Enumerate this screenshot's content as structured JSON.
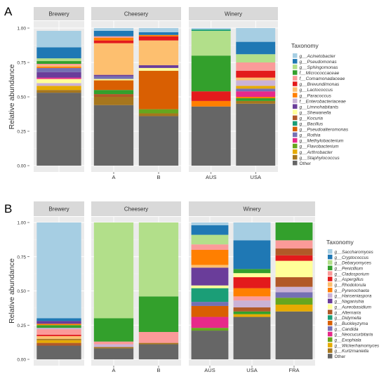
{
  "chart_data": [
    {
      "panel_label": "A",
      "type": "bar",
      "ylabel": "Relative abundance",
      "xlabel": "",
      "yticks": [
        "0.00",
        "0.25",
        "0.50",
        "0.75",
        "1.00"
      ],
      "ylim": [
        0,
        1
      ],
      "facets": [
        {
          "name": "Brewery",
          "bars": [
            ""
          ]
        },
        {
          "name": "Cheesery",
          "bars": [
            "A",
            "B"
          ]
        },
        {
          "name": "Winery",
          "bars": [
            "AUS",
            "USA"
          ]
        }
      ],
      "legend": {
        "title": "Taxonomy",
        "placement": "right",
        "entries": [
          {
            "label": "g__Acinetobacter",
            "color": "#a6cee3"
          },
          {
            "label": "g__Pseudomonas",
            "color": "#1f78b4"
          },
          {
            "label": "g__Sphingomonas",
            "color": "#b2df8a"
          },
          {
            "label": "f__Micrococcaceae",
            "color": "#33a02c"
          },
          {
            "label": "f__Comamonadaceae",
            "color": "#fb9a99"
          },
          {
            "label": "g__Brevundimonas",
            "color": "#e31a1c"
          },
          {
            "label": "g__Lactococcus",
            "color": "#fdbf6f"
          },
          {
            "label": "g__Paracoccus",
            "color": "#ff7f00"
          },
          {
            "label": "f__Enterobacteriaceae",
            "color": "#cab2d6"
          },
          {
            "label": "g__Limnohabitants",
            "color": "#6a3d9a"
          },
          {
            "label": "g__Shewanella",
            "color": "#ffff99"
          },
          {
            "label": "g__Kocuria",
            "color": "#b15928"
          },
          {
            "label": "g__Bacillus",
            "color": "#1b9e77"
          },
          {
            "label": "g__Pseudoalteromonas",
            "color": "#d95f02"
          },
          {
            "label": "g__Rothia",
            "color": "#7570b3"
          },
          {
            "label": "g__Methylobacterium",
            "color": "#e7298a"
          },
          {
            "label": "g__Flavobacterium",
            "color": "#66a61e"
          },
          {
            "label": "g__Arthrobacter",
            "color": "#e6ab02"
          },
          {
            "label": "g__Staphylococcus",
            "color": "#a6761d"
          },
          {
            "label": "Other",
            "color": "#666666"
          }
        ]
      },
      "series_values": [
        {
          "bar": "Brewery",
          "segments": [
            [
              "Other",
              0.53
            ],
            [
              "g__Staphylococcus",
              0.02
            ],
            [
              "g__Arthrobacter",
              0.03
            ],
            [
              "f__Enterobacteriaceae",
              0.02
            ],
            [
              "g__Shewanella",
              0.03
            ],
            [
              "g__Methylobacterium",
              0.01
            ],
            [
              "g__Limnohabitants",
              0.04
            ],
            [
              "g__Rothia",
              0.03
            ],
            [
              "g__Paracoccus",
              0.01
            ],
            [
              "g__Lactococcus",
              0.01
            ],
            [
              "f__Comamonadaceae",
              0.01
            ],
            [
              "f__Micrococcaceae",
              0.02
            ],
            [
              "g__Sphingomonas",
              0.02
            ],
            [
              "g__Pseudomonas",
              0.08
            ],
            [
              "g__Acinetobacter",
              0.12
            ]
          ]
        },
        {
          "bar": "A",
          "segments": [
            [
              "Other",
              0.44
            ],
            [
              "g__Staphylococcus",
              0.06
            ],
            [
              "g__Kocuria",
              0.02
            ],
            [
              "f__Micrococcaceae",
              0.03
            ],
            [
              "g__Pseudoalteromonas",
              0.07
            ],
            [
              "g__Shewanella",
              0.01
            ],
            [
              "g__Rothia",
              0.02
            ],
            [
              "g__Limnohabitants",
              0.01
            ],
            [
              "g__Lactococcus",
              0.23
            ],
            [
              "g__Brevundimonas",
              0.02
            ],
            [
              "g__Paracoccus",
              0.02
            ],
            [
              "f__Comamonadaceae",
              0.01
            ],
            [
              "g__Pseudomonas",
              0.04
            ],
            [
              "g__Acinetobacter",
              0.02
            ]
          ]
        },
        {
          "bar": "B",
          "segments": [
            [
              "Other",
              0.36
            ],
            [
              "g__Staphylococcus",
              0.02
            ],
            [
              "g__Flavobacterium",
              0.03
            ],
            [
              "g__Pseudoalteromonas",
              0.28
            ],
            [
              "g__Shewanella",
              0.02
            ],
            [
              "g__Limnohabitants",
              0.02
            ],
            [
              "g__Lactococcus",
              0.18
            ],
            [
              "g__Brevundimonas",
              0.03
            ],
            [
              "g__Paracoccus",
              0.01
            ],
            [
              "g__Pseudomonas",
              0.02
            ],
            [
              "g__Acinetobacter",
              0.03
            ]
          ]
        },
        {
          "bar": "AUS",
          "segments": [
            [
              "Other",
              0.43
            ],
            [
              "g__Paracoccus",
              0.04
            ],
            [
              "g__Brevundimonas",
              0.07
            ],
            [
              "f__Micrococcaceae",
              0.26
            ],
            [
              "g__Sphingomonas",
              0.18
            ],
            [
              "g__Bacillus",
              0.01
            ],
            [
              "g__Acinetobacter",
              0.01
            ]
          ]
        },
        {
          "bar": "USA",
          "segments": [
            [
              "Other",
              0.45
            ],
            [
              "g__Staphylococcus",
              0.02
            ],
            [
              "f__Micrococcaceae",
              0.02
            ],
            [
              "g__Paracoccus",
              0.01
            ],
            [
              "g__Methylobacterium",
              0.04
            ],
            [
              "g__Rothia",
              0.02
            ],
            [
              "g__Arthrobacter",
              0.02
            ],
            [
              "f__Enterobacteriaceae",
              0.04
            ],
            [
              "g__Lactococcus",
              0.02
            ],
            [
              "g__Brevundimonas",
              0.05
            ],
            [
              "f__Comamonadaceae",
              0.06
            ],
            [
              "g__Sphingomonas",
              0.06
            ],
            [
              "g__Pseudomonas",
              0.09
            ],
            [
              "g__Acinetobacter",
              0.1
            ]
          ]
        }
      ]
    },
    {
      "panel_label": "B",
      "type": "bar",
      "ylabel": "Relative abundance",
      "xlabel": "",
      "yticks": [
        "0.00",
        "0.25",
        "0.50",
        "0.75",
        "1.00"
      ],
      "ylim": [
        0,
        1
      ],
      "facets": [
        {
          "name": "Brewery",
          "bars": [
            ""
          ]
        },
        {
          "name": "Cheesery",
          "bars": [
            "A",
            "B"
          ]
        },
        {
          "name": "Winery",
          "bars": [
            "AUS",
            "USA",
            "FRA"
          ]
        }
      ],
      "legend": {
        "title": "Taxonomy",
        "placement": "right",
        "entries": [
          {
            "label": "g__Saccharomyces",
            "color": "#a6cee3"
          },
          {
            "label": "g__Cryptococcus",
            "color": "#1f78b4"
          },
          {
            "label": "g__Debaryomyces",
            "color": "#b2df8a"
          },
          {
            "label": "g__Penicillium",
            "color": "#33a02c"
          },
          {
            "label": "g__Cladosporium",
            "color": "#fb9a99"
          },
          {
            "label": "g__Aspergillus",
            "color": "#e31a1c"
          },
          {
            "label": "g__Rhodotorula",
            "color": "#fdbf6f"
          },
          {
            "label": "g__Pyrenochaeta",
            "color": "#ff7f00"
          },
          {
            "label": "g__Hanseniaspora",
            "color": "#cab2d6"
          },
          {
            "label": "g__Naganishia",
            "color": "#6a3d9a"
          },
          {
            "label": "g__Aureobasidium",
            "color": "#ffff99"
          },
          {
            "label": "g__Alternaria",
            "color": "#b15928"
          },
          {
            "label": "g__Didymella",
            "color": "#1b9e77"
          },
          {
            "label": "g__Buckleyzyma",
            "color": "#d95f02"
          },
          {
            "label": "g__Candida",
            "color": "#7570b3"
          },
          {
            "label": "g__Neocucurbitaria",
            "color": "#e7298a"
          },
          {
            "label": "g__Exophiala",
            "color": "#66a61e"
          },
          {
            "label": "g__Wickerhamomyces",
            "color": "#e6ab02"
          },
          {
            "label": "g__Kurtzmaniella",
            "color": "#a6761d"
          },
          {
            "label": "Other",
            "color": "#666666"
          }
        ]
      },
      "series_values": [
        {
          "bar": "Brewery",
          "segments": [
            [
              "Other",
              0.1
            ],
            [
              "g__Alternaria",
              0.02
            ],
            [
              "g__Wickerhamomyces",
              0.02
            ],
            [
              "g__Kurtzmaniella",
              0.01
            ],
            [
              "g__Rhodotorula",
              0.02
            ],
            [
              "g__Aspergillus",
              0.01
            ],
            [
              "g__Cladosporium",
              0.04
            ],
            [
              "g__Hanseniaspora",
              0.01
            ],
            [
              "g__Penicillium",
              0.02
            ],
            [
              "g__Pyrenochaeta",
              0.01
            ],
            [
              "g__Naganishia",
              0.02
            ],
            [
              "g__Cryptococcus",
              0.02
            ],
            [
              "g__Saccharomyces",
              0.7
            ]
          ]
        },
        {
          "bar": "A",
          "segments": [
            [
              "Other",
              0.08
            ],
            [
              "g__Kurtzmaniella",
              0.01
            ],
            [
              "g__Hanseniaspora",
              0.02
            ],
            [
              "g__Cladosporium",
              0.02
            ],
            [
              "g__Penicillium",
              0.17
            ],
            [
              "g__Debaryomyces",
              0.7
            ]
          ]
        },
        {
          "bar": "B",
          "segments": [
            [
              "Other",
              0.11
            ],
            [
              "g__Kurtzmaniella",
              0.01
            ],
            [
              "g__Cladosporium",
              0.08
            ],
            [
              "g__Penicillium",
              0.26
            ],
            [
              "g__Debaryomyces",
              0.54
            ]
          ]
        },
        {
          "bar": "AUS",
          "segments": [
            [
              "Other",
              0.21
            ],
            [
              "g__Exophiala",
              0.02
            ],
            [
              "g__Neocucurbitaria",
              0.08
            ],
            [
              "g__Buckleyzyma",
              0.08
            ],
            [
              "g__Candida",
              0.03
            ],
            [
              "g__Didymella",
              0.1
            ],
            [
              "g__Aureobasidium",
              0.02
            ],
            [
              "g__Naganishia",
              0.13
            ],
            [
              "g__Rhodotorula",
              0.02
            ],
            [
              "g__Pyrenochaeta",
              0.11
            ],
            [
              "g__Cladosporium",
              0.04
            ],
            [
              "g__Debaryomyces",
              0.07
            ],
            [
              "g__Cryptococcus",
              0.07
            ],
            [
              "g__Saccharomyces",
              0.02
            ]
          ]
        },
        {
          "bar": "USA",
          "segments": [
            [
              "Other",
              0.31
            ],
            [
              "g__Wickerhamomyces",
              0.02
            ],
            [
              "g__Penicillium",
              0.02
            ],
            [
              "g__Alternaria",
              0.03
            ],
            [
              "g__Hanseniaspora",
              0.05
            ],
            [
              "g__Cladosporium",
              0.03
            ],
            [
              "g__Pyrenochaeta",
              0.06
            ],
            [
              "g__Aspergillus",
              0.08
            ],
            [
              "g__Aureobasidium",
              0.03
            ],
            [
              "g__Penicillium",
              0.03
            ],
            [
              "g__Cryptococcus",
              0.21
            ],
            [
              "g__Saccharomyces",
              0.13
            ]
          ]
        },
        {
          "bar": "FRA",
          "segments": [
            [
              "Other",
              0.35
            ],
            [
              "g__Wickerhamomyces",
              0.05
            ],
            [
              "g__Exophiala",
              0.05
            ],
            [
              "g__Candida",
              0.04
            ],
            [
              "g__Hanseniaspora",
              0.04
            ],
            [
              "g__Alternaria",
              0.07
            ],
            [
              "g__Aureobasidium",
              0.12
            ],
            [
              "g__Aspergillus",
              0.04
            ],
            [
              "g__Alternaria",
              0.05
            ],
            [
              "g__Cladosporium",
              0.06
            ],
            [
              "g__Penicillium",
              0.13
            ]
          ]
        }
      ]
    }
  ]
}
